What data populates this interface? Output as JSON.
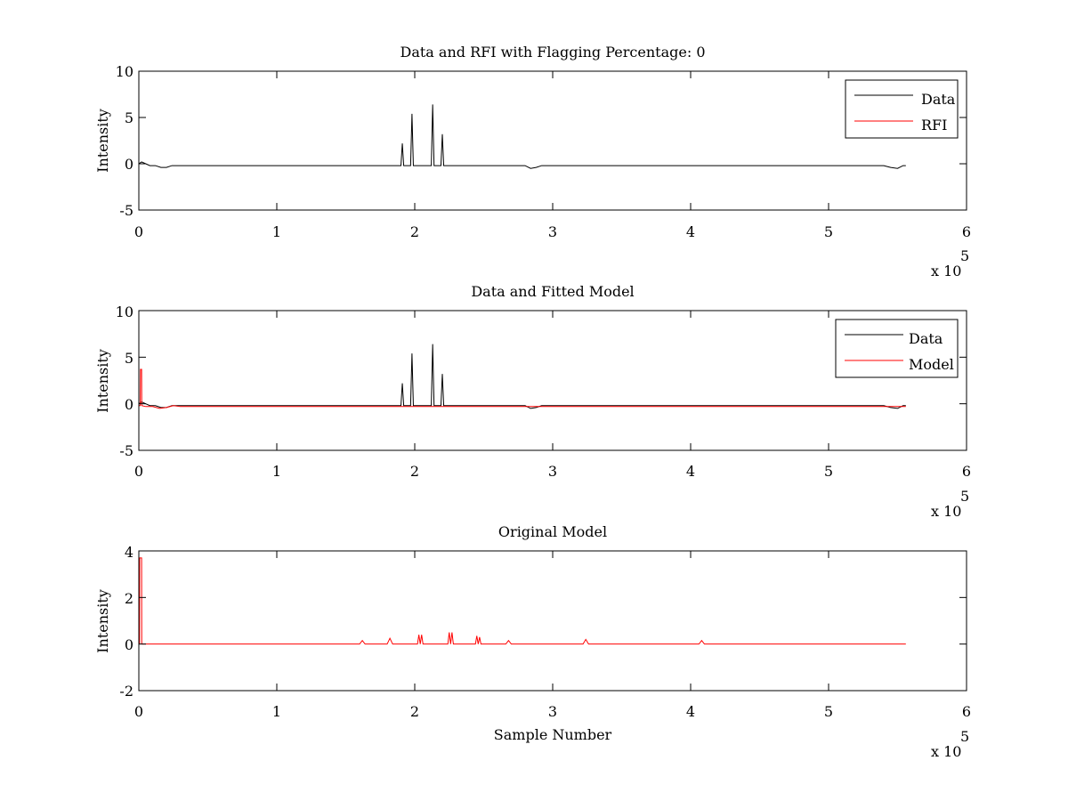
{
  "figure": {
    "background": "#ffffff"
  },
  "chart_data": [
    {
      "type": "line",
      "title": "Data and RFI with Flagging Percentage: 0",
      "xlabel": "",
      "ylabel": "Intensity",
      "xlim": [
        0,
        6
      ],
      "ylim": [
        -5,
        10
      ],
      "x_ticks": [
        "0",
        "1",
        "2",
        "3",
        "4",
        "5",
        "6"
      ],
      "y_ticks": [
        "10",
        "5",
        "0",
        "-5"
      ],
      "x_exponent_label": "x 10",
      "x_exponent_power": "5",
      "grid": false,
      "legend": {
        "position": "top-right",
        "entries": [
          {
            "label": "Data",
            "color": "#000000"
          },
          {
            "label": "RFI",
            "color": "#ff0000"
          }
        ]
      },
      "series": [
        {
          "name": "Data",
          "color": "#000000",
          "x": [
            0.0,
            0.02,
            0.05,
            0.08,
            0.12,
            0.16,
            0.2,
            0.24,
            0.3,
            0.6,
            1.0,
            1.5,
            1.9,
            1.91,
            1.92,
            1.97,
            1.98,
            1.99,
            2.12,
            2.13,
            2.14,
            2.19,
            2.2,
            2.21,
            2.4,
            2.8,
            2.84,
            2.88,
            2.92,
            3.5,
            4.5,
            5.4,
            5.45,
            5.5,
            5.54,
            5.56
          ],
          "y": [
            0.0,
            0.2,
            0.0,
            -0.2,
            -0.2,
            -0.4,
            -0.4,
            -0.2,
            -0.2,
            -0.2,
            -0.2,
            -0.2,
            -0.2,
            2.2,
            -0.2,
            -0.2,
            5.4,
            -0.2,
            -0.2,
            6.4,
            -0.2,
            -0.2,
            3.2,
            -0.2,
            -0.2,
            -0.2,
            -0.5,
            -0.4,
            -0.2,
            -0.2,
            -0.2,
            -0.2,
            -0.4,
            -0.5,
            -0.2,
            -0.2
          ]
        },
        {
          "name": "RFI",
          "color": "#ff0000",
          "x": [],
          "y": []
        }
      ]
    },
    {
      "type": "line",
      "title": "Data and Fitted Model",
      "xlabel": "",
      "ylabel": "Intensity",
      "xlim": [
        0,
        6
      ],
      "ylim": [
        -5,
        10
      ],
      "x_ticks": [
        "0",
        "1",
        "2",
        "3",
        "4",
        "5",
        "6"
      ],
      "y_ticks": [
        "10",
        "5",
        "0",
        "-5"
      ],
      "x_exponent_label": "x 10",
      "x_exponent_power": "5",
      "grid": false,
      "legend": {
        "position": "top-right",
        "entries": [
          {
            "label": "Data",
            "color": "#000000"
          },
          {
            "label": "Model",
            "color": "#ff0000"
          }
        ]
      },
      "series": [
        {
          "name": "Data",
          "color": "#000000",
          "x": [
            0.0,
            0.02,
            0.05,
            0.08,
            0.12,
            0.16,
            0.2,
            0.24,
            0.3,
            0.6,
            1.0,
            1.5,
            1.9,
            1.91,
            1.92,
            1.97,
            1.98,
            1.99,
            2.12,
            2.13,
            2.14,
            2.19,
            2.2,
            2.21,
            2.4,
            2.8,
            2.84,
            2.88,
            2.92,
            3.5,
            4.5,
            5.4,
            5.45,
            5.5,
            5.54,
            5.56
          ],
          "y": [
            0.0,
            0.2,
            0.0,
            -0.2,
            -0.2,
            -0.4,
            -0.4,
            -0.2,
            -0.2,
            -0.2,
            -0.2,
            -0.2,
            -0.2,
            2.2,
            -0.2,
            -0.2,
            5.4,
            -0.2,
            -0.2,
            6.4,
            -0.2,
            -0.2,
            3.2,
            -0.2,
            -0.2,
            -0.2,
            -0.5,
            -0.4,
            -0.2,
            -0.2,
            -0.2,
            -0.2,
            -0.4,
            -0.5,
            -0.2,
            -0.2
          ]
        },
        {
          "name": "Model",
          "color": "#ff0000",
          "x": [
            0.0,
            0.01,
            0.012,
            0.02,
            0.021,
            0.05,
            0.1,
            0.15,
            0.2,
            0.25,
            0.3,
            1.0,
            2.0,
            3.0,
            4.0,
            5.0,
            5.5,
            5.56
          ],
          "y": [
            -0.2,
            -0.2,
            3.7,
            3.7,
            -0.2,
            -0.3,
            -0.3,
            -0.5,
            -0.4,
            -0.2,
            -0.3,
            -0.3,
            -0.3,
            -0.3,
            -0.3,
            -0.3,
            -0.3,
            -0.3
          ]
        }
      ]
    },
    {
      "type": "line",
      "title": "Original Model",
      "xlabel": "Sample Number",
      "ylabel": "Intensity",
      "xlim": [
        0,
        6
      ],
      "ylim": [
        -2,
        4
      ],
      "x_ticks": [
        "0",
        "1",
        "2",
        "3",
        "4",
        "5",
        "6"
      ],
      "y_ticks": [
        "4",
        "2",
        "0",
        "-2"
      ],
      "x_exponent_label": "x 10",
      "x_exponent_power": "5",
      "grid": false,
      "legend": null,
      "series": [
        {
          "name": "",
          "color": "#ff0000",
          "x": [
            0.0,
            0.005,
            0.006,
            0.02,
            0.021,
            0.3,
            0.6,
            0.9,
            1.2,
            1.4,
            1.6,
            1.62,
            1.64,
            1.8,
            1.82,
            1.84,
            2.02,
            2.03,
            2.04,
            2.05,
            2.06,
            2.24,
            2.25,
            2.26,
            2.27,
            2.28,
            2.44,
            2.45,
            2.46,
            2.47,
            2.48,
            2.66,
            2.68,
            2.7,
            3.0,
            3.22,
            3.24,
            3.26,
            3.5,
            3.8,
            4.06,
            4.08,
            4.1,
            4.4,
            4.7,
            5.0,
            5.3,
            5.56
          ],
          "y": [
            0.0,
            0.0,
            3.7,
            3.7,
            0.0,
            0.0,
            0.0,
            0.0,
            0.0,
            0.0,
            0.0,
            0.15,
            0.0,
            0.0,
            0.25,
            0.0,
            0.0,
            0.4,
            0.0,
            0.4,
            0.0,
            0.0,
            0.5,
            0.0,
            0.5,
            0.0,
            0.0,
            0.35,
            0.0,
            0.3,
            0.0,
            0.0,
            0.15,
            0.0,
            0.0,
            0.0,
            0.2,
            0.0,
            0.0,
            0.0,
            0.0,
            0.15,
            0.0,
            0.0,
            0.0,
            0.0,
            0.0,
            0.0
          ]
        }
      ]
    }
  ]
}
